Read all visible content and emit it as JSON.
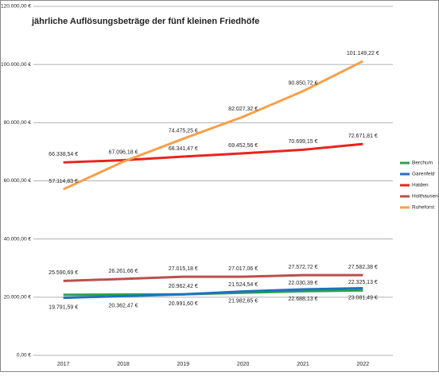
{
  "chart_data": {
    "type": "line",
    "title": "jährliche Auflösungsbeträge der fünf kleinen Friedhöfe",
    "categories": [
      "2017",
      "2018",
      "2019",
      "2020",
      "2021",
      "2022"
    ],
    "series": [
      {
        "name": "Berchum",
        "color": "#2ca24a",
        "values": [
          20800,
          20900,
          20962.42,
          21524.54,
          22030.39,
          22325.13
        ],
        "value_labels": [
          null,
          null,
          "20.962,42 €",
          "21.524,54 €",
          "22.030,39 €",
          "22.325,13 €"
        ]
      },
      {
        "name": "Garenfeld",
        "color": "#1f72c0",
        "values": [
          19791.59,
          20362.47,
          20991.6,
          21982.65,
          22688.13,
          23081.49
        ],
        "value_labels": [
          "19.791,59 €",
          "20.362,47 €",
          "20.991,60 €",
          "21.982,65 €",
          "22.688,13 €",
          "23.081,49 €"
        ]
      },
      {
        "name": "Halden",
        "color": "#e8241c",
        "values": [
          66338.54,
          67096.18,
          68341.47,
          69452.56,
          70699.15,
          72671.81
        ],
        "value_labels": [
          "66.338,54 €",
          "67.096,18 €",
          "68.341,47 €",
          "69.452,56 €",
          "70.699,15 €",
          "72.671,81 €"
        ]
      },
      {
        "name": "Holthausen",
        "color": "#b9504c",
        "values": [
          25590.69,
          26261.66,
          27015.18,
          27017.06,
          27572.72,
          27582.38
        ],
        "value_labels": [
          "25.590,69 €",
          "26.261,66 €",
          "27.015,18 €",
          "27.017,06 €",
          "27.572,72 €",
          "27.582,38 €"
        ]
      },
      {
        "name": "Ruheforst",
        "color": "#f7a04a",
        "values": [
          57114.83,
          66600,
          74475.25,
          82027.32,
          90850.72,
          101149.22
        ],
        "value_labels": [
          "57.114,83 €",
          null,
          "74.475,25 €",
          "82.027,32 €",
          "90.850,72 €",
          "101.149,22 €"
        ]
      }
    ],
    "ylim": [
      0,
      120000
    ],
    "yticks": [
      {
        "value": 0,
        "label": "0,00 €"
      },
      {
        "value": 20000,
        "label": "20.000,00 €"
      },
      {
        "value": 40000,
        "label": "40.000,00 €"
      },
      {
        "value": 60000,
        "label": "60.000,00 €"
      },
      {
        "value": 80000,
        "label": "80.000,00 €"
      },
      {
        "value": 100000,
        "label": "100.000,00 €"
      },
      {
        "value": 120000,
        "label": "120.000,00 €"
      }
    ],
    "grid": true,
    "legend": "right"
  }
}
